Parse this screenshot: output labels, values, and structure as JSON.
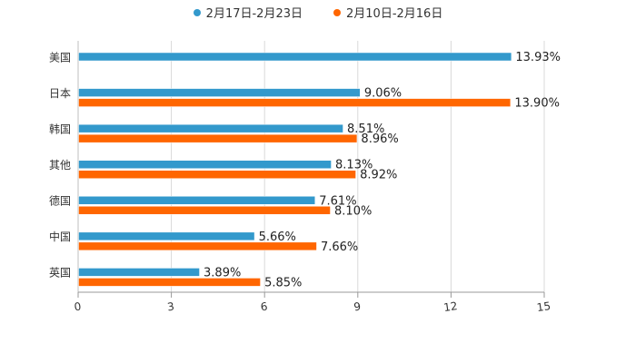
{
  "chart_data": {
    "type": "bar",
    "orientation": "horizontal",
    "categories": [
      "美国",
      "日本",
      "韩国",
      "其他",
      "德国",
      "中国",
      "英国"
    ],
    "series": [
      {
        "name": "2月17日-2月23日",
        "color": "#3399cc",
        "values": [
          13.93,
          9.06,
          8.51,
          8.13,
          7.61,
          5.66,
          3.89
        ],
        "labels": [
          "13.93%",
          "9.06%",
          "8.51%",
          "8.13%",
          "7.61%",
          "5.66%",
          "3.89%"
        ]
      },
      {
        "name": "2月10日-2月16日",
        "color": "#ff6600",
        "values": [
          null,
          13.9,
          8.96,
          8.92,
          8.1,
          7.66,
          5.85
        ],
        "labels": [
          null,
          "13.90%",
          "8.96%",
          "8.92%",
          "8.10%",
          "7.66%",
          "5.85%"
        ]
      }
    ],
    "xlim": [
      0,
      15
    ],
    "xticks": [
      "0",
      "3",
      "6",
      "9",
      "12",
      "15"
    ],
    "grid": true,
    "legend_position": "top-center"
  }
}
